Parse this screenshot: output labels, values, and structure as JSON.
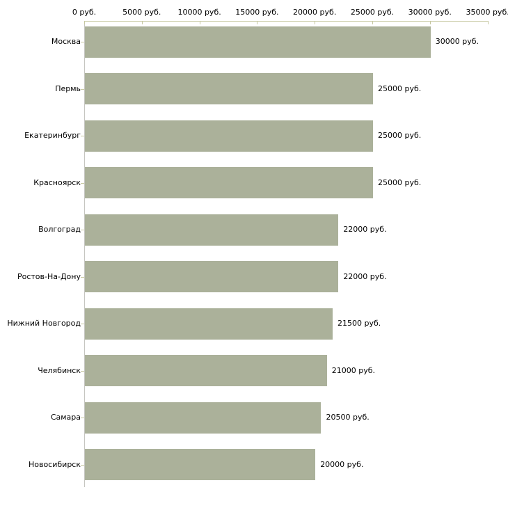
{
  "chart_data": {
    "type": "bar",
    "orientation": "horizontal",
    "title": "",
    "categories": [
      "Москва",
      "Пермь",
      "Екатеринбург",
      "Красноярск",
      "Волгоград",
      "Ростов-На-Дону",
      "Нижний Новгород",
      "Челябинск",
      "Самара",
      "Новосибирск"
    ],
    "values": [
      30000,
      25000,
      25000,
      25000,
      22000,
      22000,
      21500,
      21000,
      20500,
      20000
    ],
    "value_labels": [
      "30000 руб.",
      "25000 руб.",
      "25000 руб.",
      "25000 руб.",
      "22000 руб.",
      "22000 руб.",
      "21500 руб.",
      "21000 руб.",
      "20500 руб.",
      "20000 руб."
    ],
    "x_axis": {
      "position": "top",
      "min": 0,
      "max": 35000,
      "ticks": [
        0,
        5000,
        10000,
        15000,
        20000,
        25000,
        30000,
        35000
      ],
      "tick_labels": [
        "0 руб.",
        "5000 руб.",
        "10000 руб.",
        "15000 руб.",
        "20000 руб.",
        "25000 руб.",
        "30000 руб.",
        "35000 руб."
      ],
      "unit": "руб."
    },
    "grid": false,
    "legend": false,
    "colors": {
      "bar": "#abb19a",
      "x_axis_line": "#c6c7a0",
      "y_axis_line": "#c5c5c0",
      "text": "#000000",
      "background": "#ffffff"
    }
  }
}
